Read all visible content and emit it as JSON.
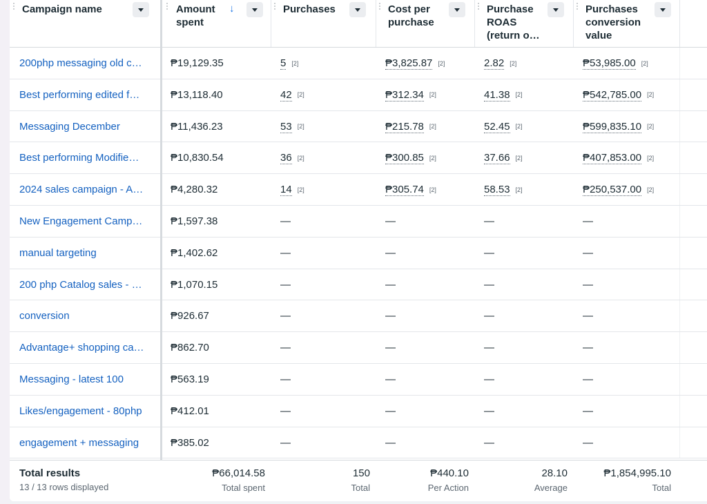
{
  "columns": [
    {
      "label": "Campaign name"
    },
    {
      "label": "Amount spent"
    },
    {
      "label": "Purchases"
    },
    {
      "label": "Cost per purchase"
    },
    {
      "label": "Purchase ROAS (return o…"
    },
    {
      "label": "Purchases conversion value"
    }
  ],
  "rows": [
    {
      "name": "200php messaging old c…",
      "amount": "₱19,129.35",
      "purchases": "5",
      "cpp": "₱3,825.87",
      "roas": "2.82",
      "value": "₱53,985.00",
      "fn": "[2]"
    },
    {
      "name": "Best performing edited f…",
      "amount": "₱13,118.40",
      "purchases": "42",
      "cpp": "₱312.34",
      "roas": "41.38",
      "value": "₱542,785.00",
      "fn": "[2]"
    },
    {
      "name": "Messaging December",
      "amount": "₱11,436.23",
      "purchases": "53",
      "cpp": "₱215.78",
      "roas": "52.45",
      "value": "₱599,835.10",
      "fn": "[2]"
    },
    {
      "name": "Best performing Modifie…",
      "amount": "₱10,830.54",
      "purchases": "36",
      "cpp": "₱300.85",
      "roas": "37.66",
      "value": "₱407,853.00",
      "fn": "[2]"
    },
    {
      "name": "2024 sales campaign - A…",
      "amount": "₱4,280.32",
      "purchases": "14",
      "cpp": "₱305.74",
      "roas": "58.53",
      "value": "₱250,537.00",
      "fn": "[2]"
    },
    {
      "name": "New Engagement Camp…",
      "amount": "₱1,597.38",
      "purchases": "—",
      "cpp": "—",
      "roas": "—",
      "value": "—",
      "fn": ""
    },
    {
      "name": "manual targeting",
      "amount": "₱1,402.62",
      "purchases": "—",
      "cpp": "—",
      "roas": "—",
      "value": "—",
      "fn": ""
    },
    {
      "name": "200 php Catalog sales - …",
      "amount": "₱1,070.15",
      "purchases": "—",
      "cpp": "—",
      "roas": "—",
      "value": "—",
      "fn": ""
    },
    {
      "name": "conversion",
      "amount": "₱926.67",
      "purchases": "—",
      "cpp": "—",
      "roas": "—",
      "value": "—",
      "fn": ""
    },
    {
      "name": "Advantage+ shopping ca…",
      "amount": "₱862.70",
      "purchases": "—",
      "cpp": "—",
      "roas": "—",
      "value": "—",
      "fn": ""
    },
    {
      "name": "Messaging - latest 100",
      "amount": "₱563.19",
      "purchases": "—",
      "cpp": "—",
      "roas": "—",
      "value": "—",
      "fn": ""
    },
    {
      "name": "Likes/engagement - 80php",
      "amount": "₱412.01",
      "purchases": "—",
      "cpp": "—",
      "roas": "—",
      "value": "—",
      "fn": ""
    },
    {
      "name": "engagement + messaging",
      "amount": "₱385.02",
      "purchases": "—",
      "cpp": "—",
      "roas": "—",
      "value": "—",
      "fn": ""
    }
  ],
  "totals": {
    "title": "Total results",
    "subtitle": "13 / 13 rows displayed",
    "amount": {
      "value": "₱66,014.58",
      "label": "Total spent"
    },
    "purchases": {
      "value": "150",
      "label": "Total"
    },
    "cpp": {
      "value": "₱440.10",
      "label": "Per Action"
    },
    "roas": {
      "value": "28.10",
      "label": "Average"
    },
    "value": {
      "value": "₱1,854,995.10",
      "label": "Total"
    }
  },
  "icons": {
    "sort": "sort-descending-icon",
    "dropdown": "chevron-down-icon",
    "grip": "drag-handle-icon"
  },
  "colors": {
    "link": "#1461c0",
    "sort_accent": "#1b74e4"
  }
}
